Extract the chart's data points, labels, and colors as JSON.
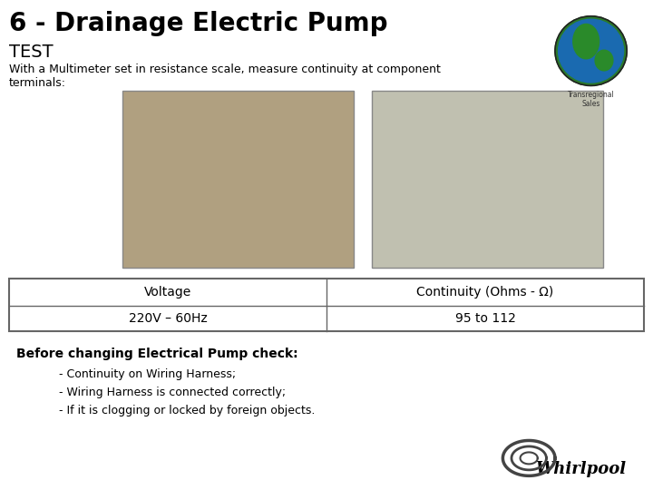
{
  "title_line1": "6 - Drainage Electric Pump",
  "title_line2": "TEST",
  "subtitle": "With a Multimeter set in resistance scale, measure continuity at component\nterminals:",
  "table_headers": [
    "Voltage",
    "Continuity (Ohms - Ω)"
  ],
  "table_row": [
    "220V – 60Hz",
    "95 to 112"
  ],
  "bold_text": "Before changing Electrical Pump check:",
  "bullets": [
    "- Continuity on Wiring Harness;",
    "- Wiring Harness is connected correctly;",
    "- If it is clogging or locked by foreign objects."
  ],
  "bg_color": "#ffffff",
  "title_color": "#000000",
  "table_border_color": "#666666",
  "img1_color": "#b0a080",
  "img2_color": "#c0c0b0",
  "title1_fontsize": 20,
  "title2_fontsize": 14,
  "subtitle_fontsize": 9,
  "table_fontsize": 10,
  "bold_fontsize": 10,
  "bullet_fontsize": 9
}
